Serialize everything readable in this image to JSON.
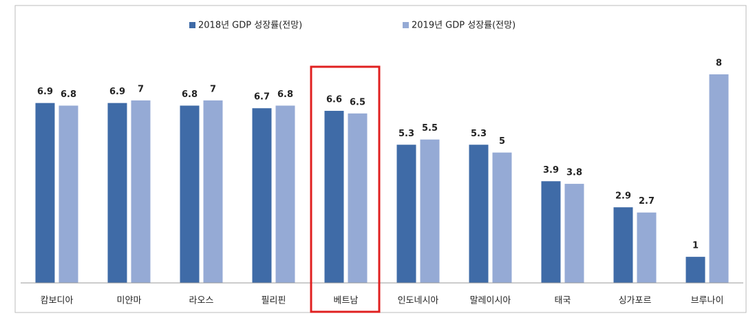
{
  "chart_data": {
    "type": "bar",
    "categories": [
      "캄보디아",
      "미얀마",
      "라오스",
      "필리핀",
      "베트남",
      "인도네시아",
      "말레이시아",
      "태국",
      "싱가포르",
      "브루나이"
    ],
    "series": [
      {
        "name": "2018년 GDP 성장률(전망)",
        "color": "#3f6ba7",
        "values": [
          6.9,
          6.9,
          6.8,
          6.7,
          6.6,
          5.3,
          5.3,
          3.9,
          2.9,
          1
        ]
      },
      {
        "name": "2019년 GDP 성장률(전망)",
        "color": "#95aad5",
        "values": [
          6.8,
          7,
          7,
          6.8,
          6.5,
          5.5,
          5,
          3.8,
          2.7,
          8
        ]
      }
    ],
    "ylim": [
      0,
      8
    ],
    "legend": "top",
    "highlight": 4,
    "highlight_color": "#e02020"
  }
}
